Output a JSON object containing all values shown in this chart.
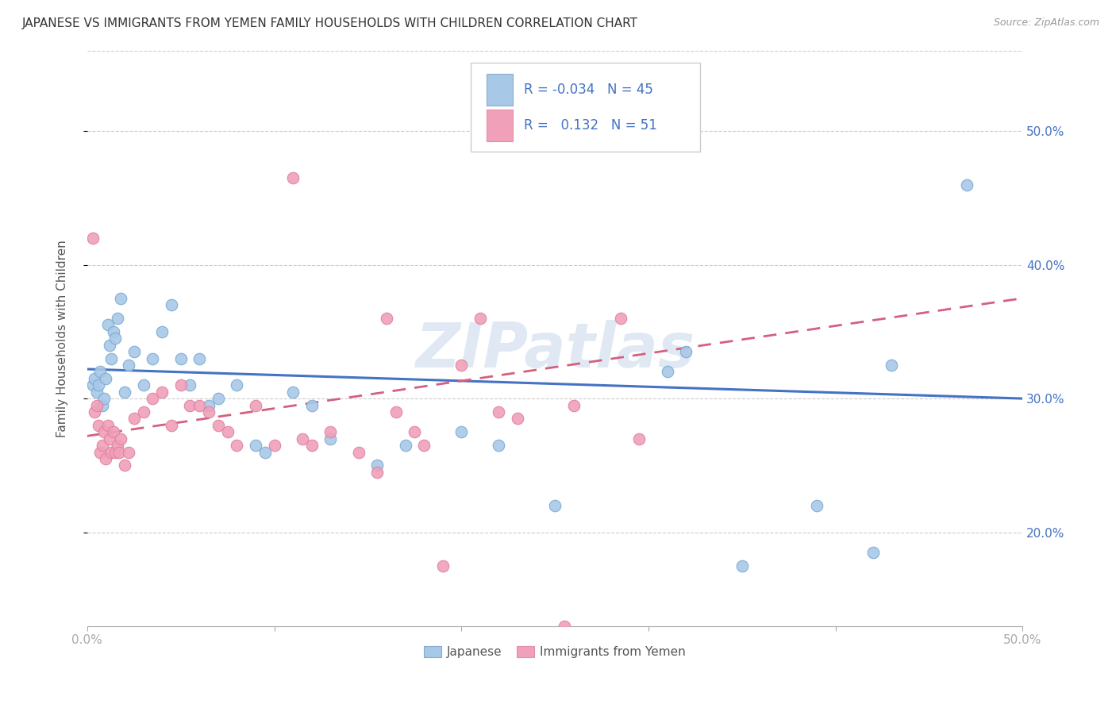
{
  "title": "JAPANESE VS IMMIGRANTS FROM YEMEN FAMILY HOUSEHOLDS WITH CHILDREN CORRELATION CHART",
  "source": "Source: ZipAtlas.com",
  "ylabel": "Family Households with Children",
  "xlim": [
    0.0,
    0.5
  ],
  "ylim": [
    0.13,
    0.56
  ],
  "color_japanese": "#a8c8e8",
  "color_yemen": "#f0a0b8",
  "color_line_japanese": "#4472c4",
  "color_line_yemen": "#d46080",
  "color_right_axis": "#4472c4",
  "color_grid": "#cccccc",
  "watermark": "ZIPatlas",
  "watermark_color": "#c8d8ea",
  "jp_line_start_y": 0.322,
  "jp_line_end_y": 0.3,
  "ye_line_start_y": 0.272,
  "ye_line_end_y": 0.375,
  "japanese_x": [
    0.003,
    0.004,
    0.005,
    0.006,
    0.007,
    0.008,
    0.009,
    0.01,
    0.011,
    0.012,
    0.013,
    0.014,
    0.015,
    0.016,
    0.018,
    0.02,
    0.022,
    0.025,
    0.03,
    0.035,
    0.04,
    0.045,
    0.05,
    0.055,
    0.06,
    0.065,
    0.07,
    0.08,
    0.09,
    0.095,
    0.11,
    0.12,
    0.13,
    0.155,
    0.17,
    0.2,
    0.22,
    0.25,
    0.31,
    0.32,
    0.35,
    0.39,
    0.42,
    0.43,
    0.47
  ],
  "japanese_y": [
    0.31,
    0.315,
    0.305,
    0.31,
    0.32,
    0.295,
    0.3,
    0.315,
    0.355,
    0.34,
    0.33,
    0.35,
    0.345,
    0.36,
    0.375,
    0.305,
    0.325,
    0.335,
    0.31,
    0.33,
    0.35,
    0.37,
    0.33,
    0.31,
    0.33,
    0.295,
    0.3,
    0.31,
    0.265,
    0.26,
    0.305,
    0.295,
    0.27,
    0.25,
    0.265,
    0.275,
    0.265,
    0.22,
    0.32,
    0.335,
    0.175,
    0.22,
    0.185,
    0.325,
    0.46
  ],
  "yemen_x": [
    0.003,
    0.004,
    0.005,
    0.006,
    0.007,
    0.008,
    0.009,
    0.01,
    0.011,
    0.012,
    0.013,
    0.014,
    0.015,
    0.016,
    0.017,
    0.018,
    0.02,
    0.022,
    0.025,
    0.03,
    0.035,
    0.04,
    0.045,
    0.05,
    0.055,
    0.06,
    0.065,
    0.07,
    0.075,
    0.08,
    0.09,
    0.1,
    0.11,
    0.115,
    0.12,
    0.13,
    0.145,
    0.155,
    0.16,
    0.165,
    0.175,
    0.18,
    0.19,
    0.2,
    0.21,
    0.22,
    0.23,
    0.255,
    0.26,
    0.285,
    0.295
  ],
  "yemen_y": [
    0.42,
    0.29,
    0.295,
    0.28,
    0.26,
    0.265,
    0.275,
    0.255,
    0.28,
    0.27,
    0.26,
    0.275,
    0.26,
    0.265,
    0.26,
    0.27,
    0.25,
    0.26,
    0.285,
    0.29,
    0.3,
    0.305,
    0.28,
    0.31,
    0.295,
    0.295,
    0.29,
    0.28,
    0.275,
    0.265,
    0.295,
    0.265,
    0.465,
    0.27,
    0.265,
    0.275,
    0.26,
    0.245,
    0.36,
    0.29,
    0.275,
    0.265,
    0.175,
    0.325,
    0.36,
    0.29,
    0.285,
    0.13,
    0.295,
    0.36,
    0.27
  ],
  "bottom_labels": [
    "Japanese",
    "Immigrants from Yemen"
  ]
}
